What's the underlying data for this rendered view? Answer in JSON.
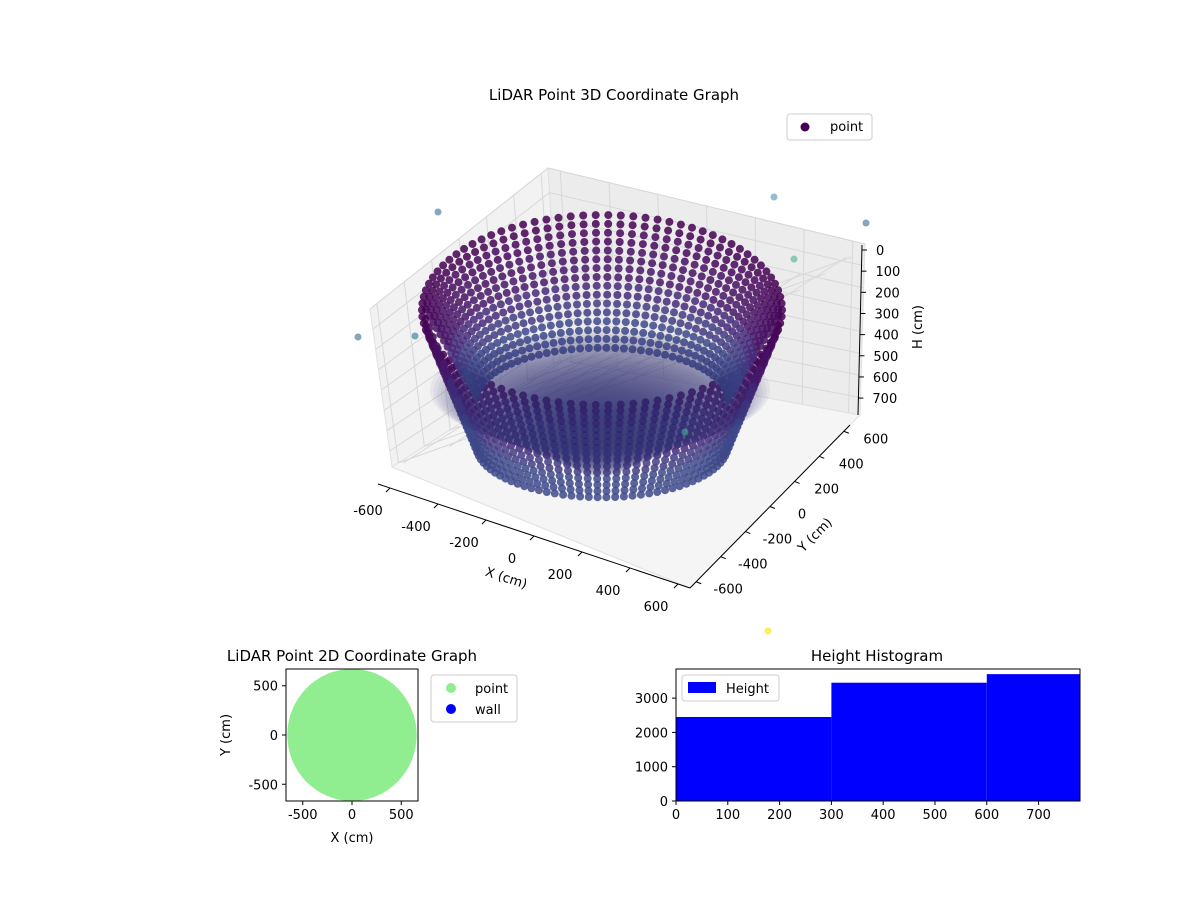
{
  "chart_data": [
    {
      "type": "scatter",
      "projection": "3d",
      "title": "LiDAR Point 3D Coordinate Graph",
      "xlabel": "X (cm)",
      "ylabel": "Y (cm)",
      "zlabel": "H (cm)",
      "xlim": [
        -650,
        650
      ],
      "ylim": [
        -650,
        650
      ],
      "zlim": [
        0,
        780
      ],
      "z_inverted": true,
      "xticks": [
        -600,
        -400,
        -200,
        0,
        200,
        400,
        600
      ],
      "yticks": [
        -600,
        -400,
        -200,
        0,
        200,
        400,
        600
      ],
      "zticks": [
        0,
        100,
        200,
        300,
        400,
        500,
        600,
        700
      ],
      "grid": true,
      "colormap": "viridis",
      "legend": {
        "placement": "upper-right",
        "entries": [
          {
            "label": "point",
            "color": "#440154"
          }
        ]
      },
      "series": [
        {
          "name": "point",
          "description_values": "ring of wall points radius ~600 cm from H 0 to 780 cm",
          "x": [],
          "y": [],
          "z": []
        }
      ]
    },
    {
      "type": "scatter",
      "title": "LiDAR Point 2D Coordinate Graph",
      "xlabel": "X (cm)",
      "ylabel": "Y (cm)",
      "xlim": [
        -670,
        670
      ],
      "ylim": [
        -670,
        670
      ],
      "xticks": [
        -500,
        0,
        500
      ],
      "yticks": [
        -500,
        0,
        500
      ],
      "grid": false,
      "legend": {
        "placement": "outside-right",
        "entries": [
          {
            "label": "point",
            "color": "#90ee90"
          },
          {
            "label": "wall",
            "color": "#0000ff"
          }
        ]
      },
      "series": [
        {
          "name": "point",
          "color": "#90ee90"
        },
        {
          "name": "wall",
          "color": "#0000ff"
        }
      ]
    },
    {
      "type": "bar",
      "title": "Height Histogram",
      "xlim": [
        0,
        780
      ],
      "ylim": [
        0,
        3850
      ],
      "xticks": [
        0,
        100,
        200,
        300,
        400,
        500,
        600,
        700
      ],
      "yticks": [
        0,
        1000,
        2000,
        3000
      ],
      "legend": {
        "placement": "upper-left",
        "entries": [
          {
            "label": "Height",
            "color": "#0000ff"
          }
        ]
      },
      "bins": [
        {
          "from": 0,
          "to": 300,
          "count": 2450
        },
        {
          "from": 300,
          "to": 600,
          "count": 3450
        },
        {
          "from": 600,
          "to": 780,
          "count": 3700
        }
      ],
      "color": "#0000ff"
    }
  ]
}
